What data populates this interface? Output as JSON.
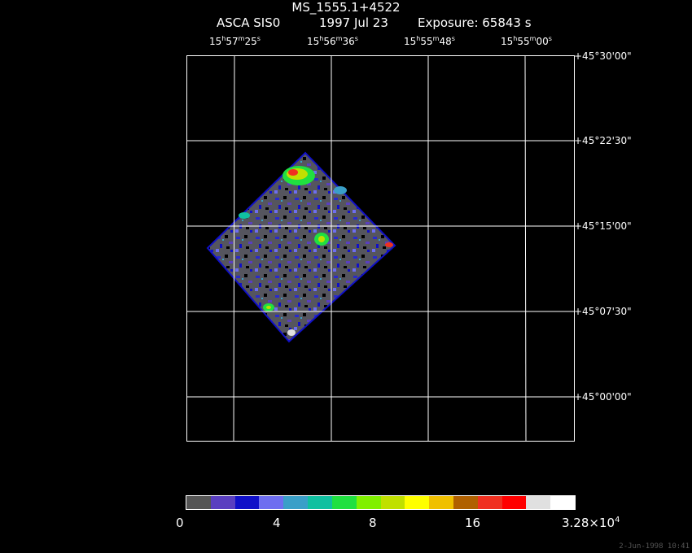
{
  "header": {
    "title": "MS_1555.1+4522",
    "instrument": "ASCA SIS0",
    "date": "1997 Jul 23",
    "exposure": "Exposure: 65843 s"
  },
  "ra_axis": [
    {
      "h": "15",
      "m": "57",
      "s": "25"
    },
    {
      "h": "15",
      "m": "56",
      "s": "36"
    },
    {
      "h": "15",
      "m": "55",
      "s": "48"
    },
    {
      "h": "15",
      "m": "55",
      "s": "00"
    }
  ],
  "ra_units": {
    "h": "h",
    "m": "m",
    "s": "s"
  },
  "dec_axis": [
    "+45°30'00\"",
    "+45°22'30\"",
    "+45°15'00\"",
    "+45°07'30\"",
    "+45°00'00\""
  ],
  "colorbar": {
    "colors": [
      "#555555",
      "#5a3fc0",
      "#1010c8",
      "#6e6ef0",
      "#3a9fc8",
      "#10c0a0",
      "#20e040",
      "#80f000",
      "#c0e000",
      "#ffff00",
      "#f0c000",
      "#b06000",
      "#f03020",
      "#ff0000",
      "#e0e0e0",
      "#ffffff"
    ],
    "ticks": [
      "0",
      "4",
      "8",
      "16"
    ],
    "max_label": "3.28×10",
    "max_exp": "4"
  },
  "timestamp": "2-Jun-1998 10:41"
}
